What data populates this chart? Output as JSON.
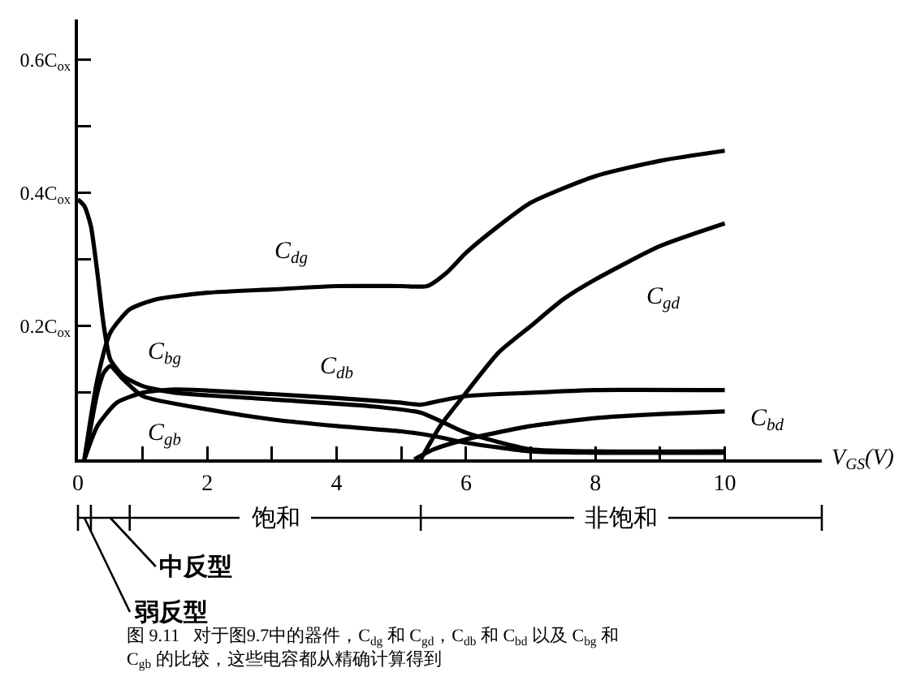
{
  "chart_data": {
    "type": "line",
    "xlabel": "V$_{GS}$(V)",
    "xlim": [
      0,
      11.5
    ],
    "xticks": [
      0,
      {
        "value": 1,
        "label": null
      },
      2,
      {
        "value": 3,
        "label": null
      },
      4,
      {
        "value": 5,
        "label": null
      },
      6,
      {
        "value": 7,
        "label": null
      },
      8,
      {
        "value": 9,
        "label": null
      },
      10
    ],
    "ylim": [
      0,
      0.66
    ],
    "yticks": [
      {
        "value": 0.1,
        "label": null
      },
      {
        "value": 0.2,
        "label": "0.2C$_{ox}$"
      },
      {
        "value": 0.3,
        "label": null
      },
      {
        "value": 0.4,
        "label": "0.4C$_{ox}$"
      },
      {
        "value": 0.5,
        "label": null
      },
      {
        "value": 0.6,
        "label": "0.6C$_{ox}$"
      }
    ],
    "grid": false,
    "legend": false,
    "marker": "none",
    "line_style": "solid",
    "series": [
      {
        "name": "C$_{dg}$",
        "color": "#000000",
        "x": [
          0.1,
          0.3,
          0.5,
          0.8,
          1.2,
          2,
          3,
          4,
          5,
          5.4,
          5.7,
          6,
          6.5,
          7,
          8,
          9,
          10
        ],
        "values": [
          0,
          0.12,
          0.19,
          0.225,
          0.24,
          0.25,
          0.255,
          0.26,
          0.26,
          0.26,
          0.28,
          0.31,
          0.35,
          0.385,
          0.425,
          0.448,
          0.463
        ]
      },
      {
        "name": "C$_{gd}$",
        "color": "#000000",
        "x": [
          5.3,
          5.6,
          6,
          6.5,
          7,
          7.5,
          8,
          9,
          10
        ],
        "values": [
          0,
          0.05,
          0.1,
          0.16,
          0.2,
          0.24,
          0.27,
          0.32,
          0.354
        ]
      },
      {
        "name": "C$_{db}$",
        "color": "#000000",
        "x": [
          0.1,
          0.3,
          0.6,
          1,
          1.5,
          3,
          4,
          5,
          5.3,
          5.6,
          6,
          7,
          8,
          10
        ],
        "values": [
          0,
          0.05,
          0.085,
          0.1,
          0.105,
          0.098,
          0.092,
          0.085,
          0.082,
          0.088,
          0.095,
          0.1,
          0.104,
          0.104
        ]
      },
      {
        "name": "C$_{bd}$",
        "color": "#000000",
        "x": [
          5.2,
          5.5,
          6,
          7,
          8,
          9,
          10
        ],
        "values": [
          0,
          0.015,
          0.03,
          0.05,
          0.062,
          0.068,
          0.072
        ]
      },
      {
        "name": "C$_{bg}$",
        "color": "#000000",
        "x": [
          0,
          0.1,
          0.2,
          0.3,
          0.4,
          0.5,
          0.7,
          1,
          1.5,
          3,
          4.5,
          5.3,
          6,
          7,
          8,
          10
        ],
        "values": [
          0.39,
          0.38,
          0.35,
          0.28,
          0.2,
          0.15,
          0.125,
          0.11,
          0.1,
          0.09,
          0.08,
          0.07,
          0.04,
          0.015,
          0.012,
          0.012
        ]
      },
      {
        "name": "C$_{gb}$",
        "color": "#000000",
        "x": [
          0.1,
          0.2,
          0.3,
          0.4,
          0.5,
          0.7,
          1,
          2,
          3,
          4,
          5,
          5.5,
          6,
          7,
          8,
          10
        ],
        "values": [
          0,
          0.05,
          0.1,
          0.13,
          0.14,
          0.12,
          0.095,
          0.075,
          0.06,
          0.05,
          0.042,
          0.035,
          0.025,
          0.012,
          0.01,
          0.01
        ]
      }
    ],
    "annotations": [
      "弱反型",
      "中反型",
      "饱和",
      "非饱和",
      "图 9.11   对于图9.7中的器件，C$_{dg}$ 和 C$_{gd}$，C$_{db}$ 和 C$_{bd}$ 以及 C$_{bg}$ 和\nC$_{gb}$ 的比较，这些电容都从精确计算得到"
    ]
  }
}
